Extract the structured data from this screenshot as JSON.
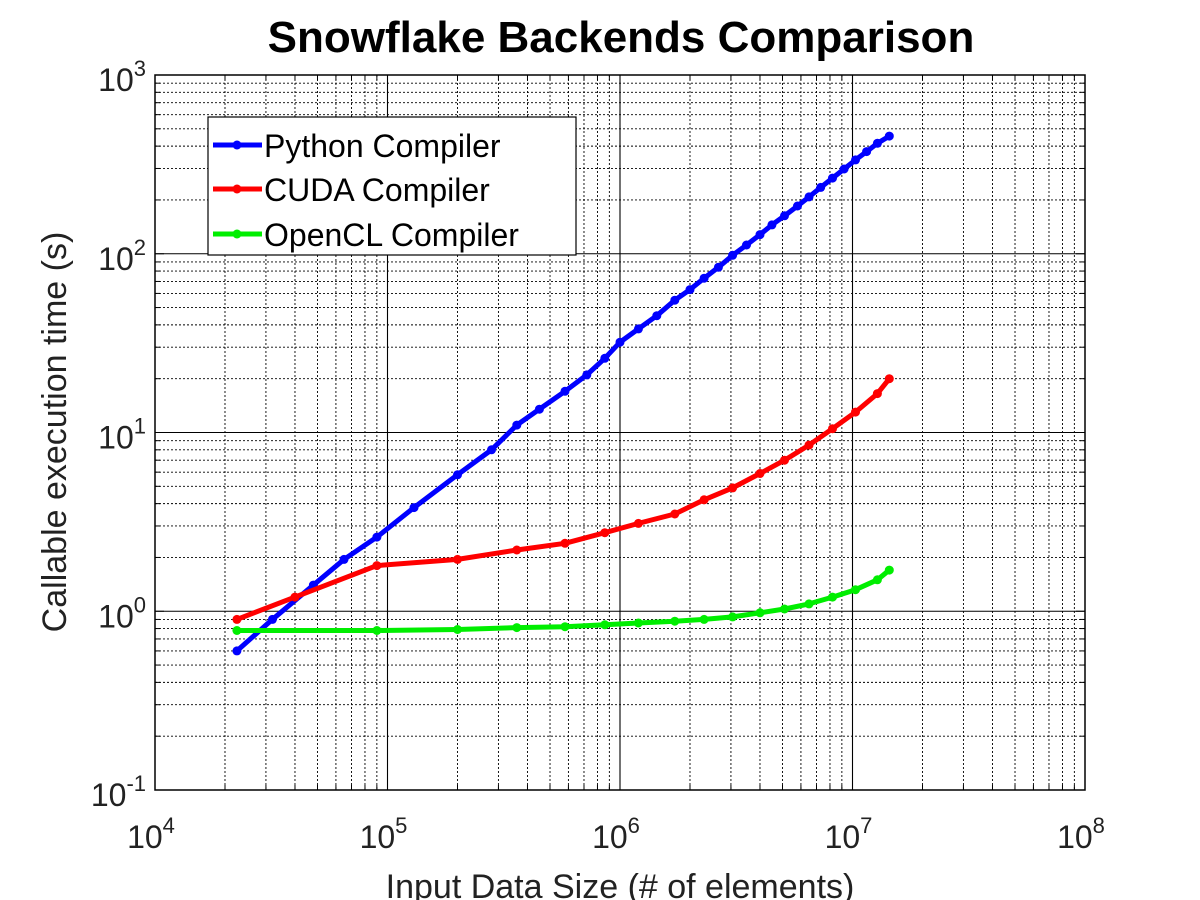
{
  "chart_data": {
    "type": "line",
    "title": "Snowflake Backends Comparison",
    "xlabel": "Input Data Size (# of elements)",
    "ylabel": "Callable execution time (s)",
    "xscale": "log",
    "yscale": "log",
    "xlim": [
      10000,
      100000000
    ],
    "ylim": [
      0.1,
      1000
    ],
    "grid": "major and minor",
    "legend_position": "top-left",
    "x_ticks": [
      {
        "base": "10",
        "exp": "4"
      },
      {
        "base": "10",
        "exp": "5"
      },
      {
        "base": "10",
        "exp": "6"
      },
      {
        "base": "10",
        "exp": "7"
      },
      {
        "base": "10",
        "exp": "8"
      }
    ],
    "y_ticks": [
      {
        "base": "10",
        "exp": "-1"
      },
      {
        "base": "10",
        "exp": "0"
      },
      {
        "base": "10",
        "exp": "1"
      },
      {
        "base": "10",
        "exp": "2"
      },
      {
        "base": "10",
        "exp": "3"
      }
    ],
    "series": [
      {
        "name": "Python Compiler",
        "color": "#0000ff",
        "points": [
          [
            22500,
            0.6
          ],
          [
            32000,
            0.9
          ],
          [
            48000,
            1.4
          ],
          [
            65000,
            1.95
          ],
          [
            90000,
            2.6
          ],
          [
            130000,
            3.8
          ],
          [
            200000,
            5.8
          ],
          [
            280000,
            8.0
          ],
          [
            360000,
            11
          ],
          [
            450000,
            13.5
          ],
          [
            580000,
            17
          ],
          [
            720000,
            21
          ],
          [
            860000,
            26
          ],
          [
            1000000,
            32
          ],
          [
            1200000,
            38
          ],
          [
            1440000,
            45
          ],
          [
            1720000,
            55
          ],
          [
            2000000,
            63
          ],
          [
            2300000,
            73
          ],
          [
            2650000,
            84
          ],
          [
            3050000,
            98
          ],
          [
            3500000,
            112
          ],
          [
            4000000,
            128
          ],
          [
            4500000,
            145
          ],
          [
            5100000,
            163
          ],
          [
            5800000,
            185
          ],
          [
            6500000,
            208
          ],
          [
            7300000,
            235
          ],
          [
            8200000,
            265
          ],
          [
            9200000,
            298
          ],
          [
            10300000,
            335
          ],
          [
            11500000,
            373
          ],
          [
            12800000,
            415
          ],
          [
            14400000,
            455
          ]
        ]
      },
      {
        "name": "CUDA Compiler",
        "color": "#ff0000",
        "points": [
          [
            22500,
            0.9
          ],
          [
            40000,
            1.2
          ],
          [
            90000,
            1.8
          ],
          [
            200000,
            1.95
          ],
          [
            360000,
            2.2
          ],
          [
            580000,
            2.4
          ],
          [
            860000,
            2.75
          ],
          [
            1200000,
            3.1
          ],
          [
            1720000,
            3.5
          ],
          [
            2300000,
            4.2
          ],
          [
            3050000,
            4.9
          ],
          [
            4000000,
            5.9
          ],
          [
            5100000,
            7.0
          ],
          [
            6500000,
            8.5
          ],
          [
            8200000,
            10.5
          ],
          [
            10300000,
            13.0
          ],
          [
            12800000,
            16.5
          ],
          [
            14400000,
            20
          ]
        ]
      },
      {
        "name": "OpenCL Compiler",
        "color": "#00ee00",
        "points": [
          [
            22500,
            0.78
          ],
          [
            90000,
            0.78
          ],
          [
            200000,
            0.79
          ],
          [
            360000,
            0.81
          ],
          [
            580000,
            0.82
          ],
          [
            860000,
            0.84
          ],
          [
            1200000,
            0.86
          ],
          [
            1720000,
            0.88
          ],
          [
            2300000,
            0.9
          ],
          [
            3050000,
            0.93
          ],
          [
            4000000,
            0.98
          ],
          [
            5100000,
            1.03
          ],
          [
            6500000,
            1.1
          ],
          [
            8200000,
            1.2
          ],
          [
            10300000,
            1.32
          ],
          [
            12800000,
            1.5
          ],
          [
            14400000,
            1.7
          ]
        ]
      }
    ]
  }
}
